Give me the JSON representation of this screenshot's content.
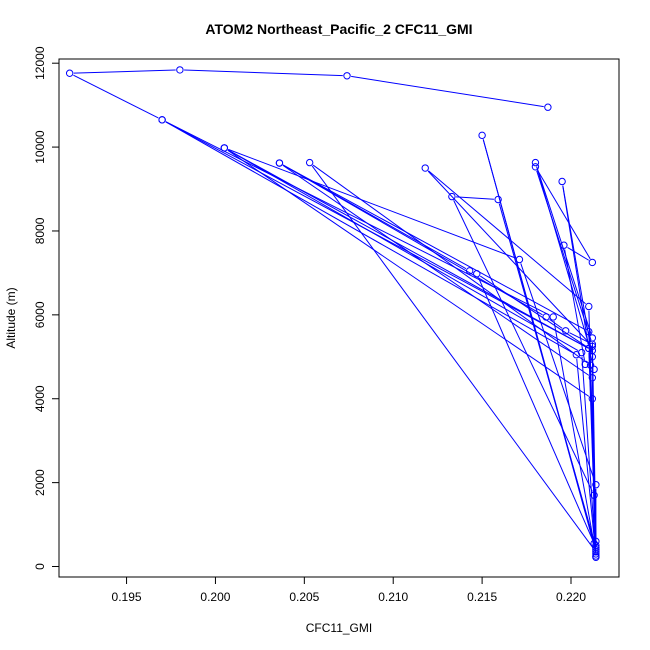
{
  "chart_data": {
    "type": "line",
    "title": "ATOM2 Northeast_Pacific_2 CFC11_GMI",
    "xlabel": "CFC11_GMI",
    "ylabel": "Altitude (m)",
    "xlim": [
      0.1912,
      0.2227
    ],
    "ylim": [
      -250,
      12100
    ],
    "xticks": [
      0.195,
      0.2,
      0.205,
      0.21,
      0.215,
      0.22
    ],
    "xtick_labels": [
      "0.195",
      "0.200",
      "0.205",
      "0.210",
      "0.215",
      "0.220"
    ],
    "yticks": [
      0,
      2000,
      4000,
      6000,
      8000,
      10000,
      12000
    ],
    "ytick_labels": [
      "0",
      "2000",
      "4000",
      "6000",
      "8000",
      "10000",
      "12000"
    ],
    "grid": false,
    "marker": "open-circle",
    "color": "#0000ff",
    "series": [
      {
        "points": [
          [
            0.2187,
            10950
          ],
          [
            0.2074,
            11700
          ],
          [
            0.198,
            11840
          ],
          [
            0.1918,
            11760
          ],
          [
            0.197,
            10650
          ],
          [
            0.221,
            5200
          ],
          [
            0.2214,
            300
          ],
          [
            0.219,
            5950
          ],
          [
            0.197,
            10650
          ],
          [
            0.2203,
            5050
          ],
          [
            0.2214,
            250
          ],
          [
            0.2206,
            5100
          ],
          [
            0.2005,
            9980
          ],
          [
            0.2212,
            4000
          ],
          [
            0.2214,
            220
          ],
          [
            0.2211,
            4800
          ],
          [
            0.2053,
            9630
          ],
          [
            0.2214,
            350
          ],
          [
            0.215,
            10280
          ],
          [
            0.2214,
            400
          ],
          [
            0.2213,
            1700
          ],
          [
            0.2133,
            8820
          ],
          [
            0.2159,
            8750
          ],
          [
            0.2214,
            450
          ],
          [
            0.2212,
            4500
          ],
          [
            0.2036,
            9620
          ],
          [
            0.221,
            5600
          ],
          [
            0.2214,
            500
          ],
          [
            0.2214,
            1950
          ],
          [
            0.2171,
            7320
          ],
          [
            0.2005,
            9980
          ],
          [
            0.2212,
            5150
          ],
          [
            0.2147,
            6980
          ],
          [
            0.2213,
            550
          ],
          [
            0.2212,
            5250
          ],
          [
            0.2118,
            9500
          ],
          [
            0.221,
            6200
          ],
          [
            0.2214,
            600
          ],
          [
            0.2212,
            5450
          ],
          [
            0.218,
            9630
          ],
          [
            0.2212,
            5000
          ],
          [
            0.2195,
            9180
          ],
          [
            0.221,
            5200
          ],
          [
            0.2213,
            4700
          ],
          [
            0.2208,
            4820
          ],
          [
            0.2196,
            7660
          ],
          [
            0.2212,
            7250
          ],
          [
            0.218,
            9530
          ],
          [
            0.2212,
            5300
          ],
          [
            0.2197,
            5620
          ],
          [
            0.2186,
            5950
          ],
          [
            0.2036,
            9620
          ],
          [
            0.2143,
            7050
          ]
        ]
      }
    ]
  }
}
